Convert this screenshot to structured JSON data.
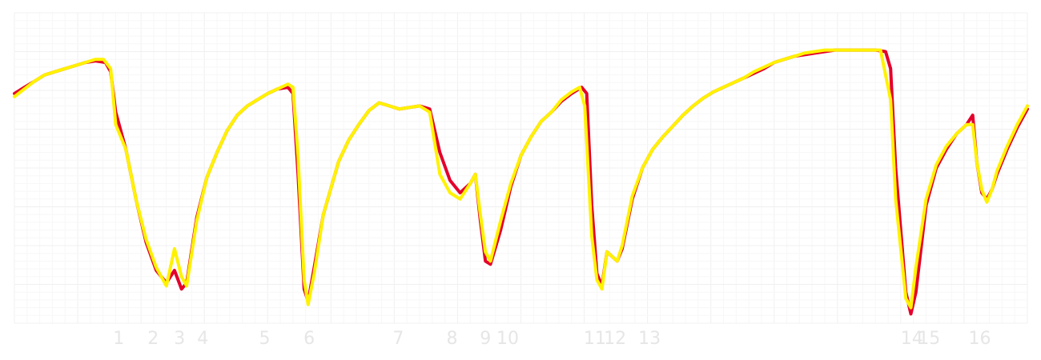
{
  "chart_data": {
    "type": "line",
    "title": "",
    "xlabel": "",
    "ylabel": "",
    "grid": true,
    "xlim": [
      0,
      100
    ],
    "ylim": [
      0,
      100
    ],
    "x_ticks": [
      {
        "label": "1",
        "x": 10.3
      },
      {
        "label": "2",
        "x": 13.7
      },
      {
        "label": "3",
        "x": 16.3
      },
      {
        "label": "4",
        "x": 18.6
      },
      {
        "label": "5",
        "x": 24.7
      },
      {
        "label": "6",
        "x": 29.1
      },
      {
        "label": "7",
        "x": 37.9
      },
      {
        "label": "8",
        "x": 43.2
      },
      {
        "label": "9",
        "x": 46.5
      },
      {
        "label": "10",
        "x": 48.7
      },
      {
        "label": "11",
        "x": 57.3
      },
      {
        "label": "12",
        "x": 59.3
      },
      {
        "label": "13",
        "x": 62.7
      },
      {
        "label": "14",
        "x": 88.6
      },
      {
        "label": "15",
        "x": 90.3
      },
      {
        "label": "16",
        "x": 95.3
      }
    ],
    "series": [
      {
        "color": "#e4002b",
        "points": [
          [
            0,
            74
          ],
          [
            1,
            76
          ],
          [
            2,
            78
          ],
          [
            3,
            80
          ],
          [
            4,
            81
          ],
          [
            5,
            82
          ],
          [
            6,
            83
          ],
          [
            7,
            84
          ],
          [
            8,
            84.5
          ],
          [
            9,
            84
          ],
          [
            9.5,
            81
          ],
          [
            10,
            68
          ],
          [
            11,
            56
          ],
          [
            12,
            40
          ],
          [
            13,
            26
          ],
          [
            14,
            17
          ],
          [
            15,
            13
          ],
          [
            15.8,
            17
          ],
          [
            16.5,
            11
          ],
          [
            17,
            13
          ],
          [
            18,
            34
          ],
          [
            19,
            47
          ],
          [
            20,
            55
          ],
          [
            21,
            62
          ],
          [
            22,
            67
          ],
          [
            23,
            70
          ],
          [
            24,
            72
          ],
          [
            25,
            74
          ],
          [
            26,
            75.5
          ],
          [
            27,
            76
          ],
          [
            27.5,
            74
          ],
          [
            28,
            48
          ],
          [
            28.6,
            11
          ],
          [
            29,
            7
          ],
          [
            29.6,
            18
          ],
          [
            30.5,
            35
          ],
          [
            32,
            52
          ],
          [
            33,
            59
          ],
          [
            34,
            64
          ],
          [
            35,
            68.5
          ],
          [
            36,
            71
          ],
          [
            37,
            70
          ],
          [
            38,
            69
          ],
          [
            39,
            69.5
          ],
          [
            40,
            70
          ],
          [
            41,
            69
          ],
          [
            42,
            55
          ],
          [
            43,
            46
          ],
          [
            44,
            42
          ],
          [
            45,
            45
          ],
          [
            45.5,
            48
          ],
          [
            46,
            33
          ],
          [
            46.5,
            20
          ],
          [
            47,
            19
          ],
          [
            48,
            30
          ],
          [
            49,
            44
          ],
          [
            50,
            54
          ],
          [
            51,
            60
          ],
          [
            52,
            65
          ],
          [
            53,
            68
          ],
          [
            54,
            71.5
          ],
          [
            55,
            74
          ],
          [
            56,
            76
          ],
          [
            56.5,
            74
          ],
          [
            57,
            38
          ],
          [
            57.5,
            16
          ],
          [
            58,
            12
          ],
          [
            58.5,
            23
          ],
          [
            59.5,
            20
          ],
          [
            60,
            24
          ],
          [
            61,
            40
          ],
          [
            62,
            50
          ],
          [
            63,
            56
          ],
          [
            64,
            60
          ],
          [
            65,
            63.5
          ],
          [
            66,
            67
          ],
          [
            67,
            70
          ],
          [
            68,
            72.5
          ],
          [
            69,
            74.5
          ],
          [
            70,
            76
          ],
          [
            71,
            77.5
          ],
          [
            72,
            79
          ],
          [
            73,
            80.5
          ],
          [
            74,
            82
          ],
          [
            75,
            84
          ],
          [
            76,
            85
          ],
          [
            77,
            86
          ],
          [
            78,
            86.5
          ],
          [
            79,
            87
          ],
          [
            80,
            87.5
          ],
          [
            81,
            88
          ],
          [
            82,
            88
          ],
          [
            83,
            88
          ],
          [
            84,
            88
          ],
          [
            85,
            88
          ],
          [
            86,
            87.5
          ],
          [
            86.5,
            82
          ],
          [
            87,
            50
          ],
          [
            88,
            10
          ],
          [
            88.5,
            3
          ],
          [
            89,
            10
          ],
          [
            90,
            38
          ],
          [
            91,
            50
          ],
          [
            92,
            56
          ],
          [
            93,
            61
          ],
          [
            94,
            64
          ],
          [
            94.6,
            67
          ],
          [
            95,
            52
          ],
          [
            95.5,
            42
          ],
          [
            96,
            40
          ],
          [
            96.5,
            43
          ],
          [
            97,
            48
          ],
          [
            98,
            56
          ],
          [
            99,
            63
          ],
          [
            100,
            69
          ]
        ]
      },
      {
        "color": "#fff200",
        "points": [
          [
            0,
            73
          ],
          [
            1,
            75.5
          ],
          [
            2,
            78
          ],
          [
            3,
            80
          ],
          [
            4,
            81
          ],
          [
            5,
            82
          ],
          [
            6,
            83
          ],
          [
            7,
            84
          ],
          [
            8,
            85
          ],
          [
            8.8,
            85
          ],
          [
            9.5,
            82
          ],
          [
            10,
            64
          ],
          [
            11,
            56
          ],
          [
            12,
            40
          ],
          [
            13,
            27
          ],
          [
            14,
            18
          ],
          [
            15,
            12
          ],
          [
            15.8,
            24
          ],
          [
            16.5,
            15
          ],
          [
            17,
            12
          ],
          [
            18,
            33
          ],
          [
            19,
            47
          ],
          [
            20,
            55
          ],
          [
            21,
            62
          ],
          [
            22,
            67
          ],
          [
            23,
            70
          ],
          [
            24,
            72
          ],
          [
            25,
            74
          ],
          [
            26,
            75.5
          ],
          [
            27,
            77
          ],
          [
            27.5,
            76
          ],
          [
            28,
            54
          ],
          [
            28.6,
            14
          ],
          [
            29,
            6
          ],
          [
            29.6,
            16
          ],
          [
            30.5,
            35
          ],
          [
            32,
            52
          ],
          [
            33,
            59
          ],
          [
            34,
            64
          ],
          [
            35,
            68.5
          ],
          [
            36,
            71
          ],
          [
            37,
            70
          ],
          [
            38,
            69
          ],
          [
            39,
            69.5
          ],
          [
            40,
            70
          ],
          [
            41,
            68
          ],
          [
            42,
            48
          ],
          [
            43,
            42
          ],
          [
            44,
            40
          ],
          [
            45,
            45
          ],
          [
            45.5,
            48
          ],
          [
            46,
            35
          ],
          [
            46.5,
            23
          ],
          [
            47,
            20
          ],
          [
            48,
            33
          ],
          [
            49,
            45
          ],
          [
            50,
            54
          ],
          [
            51,
            60
          ],
          [
            52,
            65
          ],
          [
            53,
            68
          ],
          [
            54,
            72
          ],
          [
            55,
            74.5
          ],
          [
            55.8,
            76
          ],
          [
            56.3,
            70
          ],
          [
            57,
            28
          ],
          [
            57.5,
            14
          ],
          [
            58,
            11
          ],
          [
            58.5,
            23
          ],
          [
            59.5,
            20
          ],
          [
            60,
            25
          ],
          [
            61,
            41
          ],
          [
            62,
            50
          ],
          [
            63,
            56
          ],
          [
            64,
            60
          ],
          [
            65,
            63.5
          ],
          [
            66,
            67
          ],
          [
            67,
            70
          ],
          [
            68,
            72.5
          ],
          [
            69,
            74.5
          ],
          [
            70,
            76
          ],
          [
            71,
            77.5
          ],
          [
            72,
            79
          ],
          [
            73,
            81
          ],
          [
            74,
            82.5
          ],
          [
            75,
            84
          ],
          [
            76,
            85
          ],
          [
            77,
            86
          ],
          [
            78,
            87
          ],
          [
            79,
            87.5
          ],
          [
            80,
            88
          ],
          [
            81,
            88
          ],
          [
            82,
            88
          ],
          [
            83,
            88
          ],
          [
            84,
            88
          ],
          [
            85,
            88
          ],
          [
            85.5,
            88
          ],
          [
            86.5,
            72
          ],
          [
            87,
            40
          ],
          [
            88,
            8
          ],
          [
            88.5,
            5
          ],
          [
            89,
            18
          ],
          [
            90,
            40
          ],
          [
            91,
            51
          ],
          [
            92,
            57
          ],
          [
            93,
            61
          ],
          [
            94,
            64
          ],
          [
            94.6,
            64
          ],
          [
            95,
            52
          ],
          [
            95.5,
            43
          ],
          [
            96,
            39
          ],
          [
            96.5,
            43
          ],
          [
            97,
            49
          ],
          [
            98,
            57
          ],
          [
            99,
            64
          ],
          [
            100,
            70
          ]
        ]
      }
    ]
  }
}
